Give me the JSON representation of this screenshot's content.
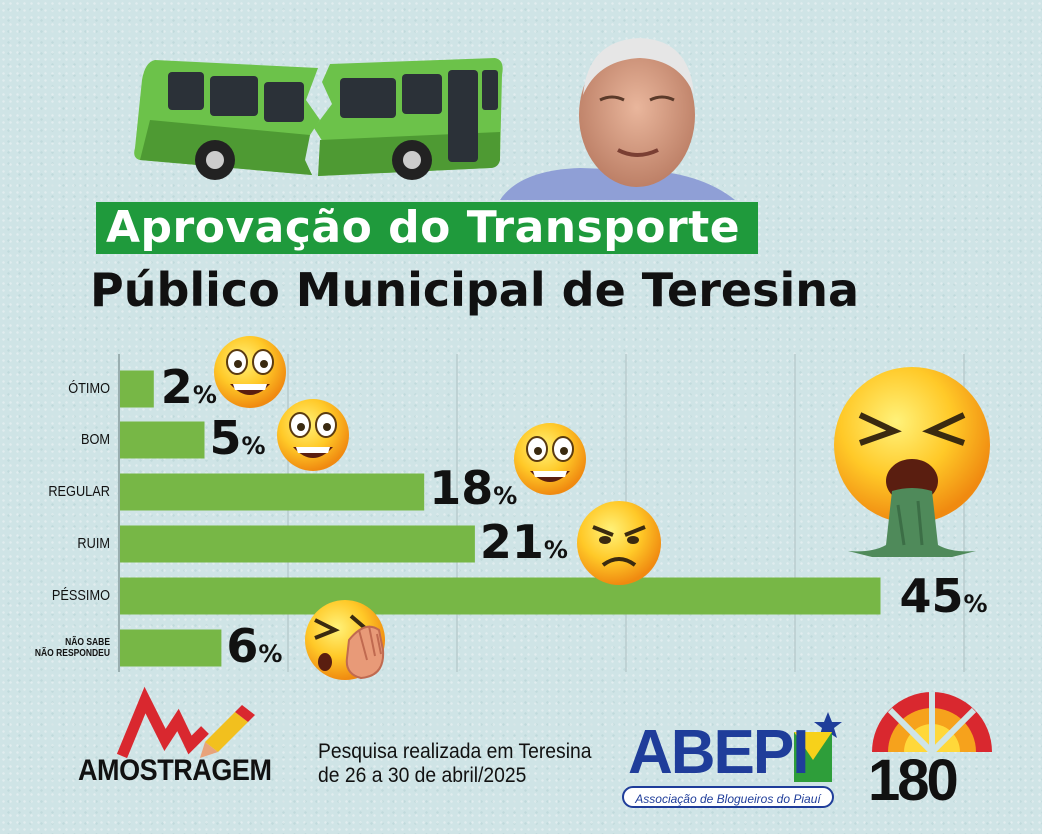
{
  "title_line1": "Aprovação do Transporte",
  "title_line2": "Público Municipal de Teresina",
  "chart_data": {
    "type": "bar",
    "orientation": "horizontal",
    "categories": [
      "ÓTIMO",
      "BOM",
      "REGULAR",
      "RUIM",
      "PÉSSIMO",
      "NÃO SABE NÃO RESPONDEU"
    ],
    "category_lines": [
      [
        "ÓTIMO"
      ],
      [
        "BOM"
      ],
      [
        "REGULAR"
      ],
      [
        "RUIM"
      ],
      [
        "PÉSSIMO"
      ],
      [
        "NÃO SABE",
        "NÃO RESPONDEU"
      ]
    ],
    "values": [
      2,
      5,
      18,
      21,
      45,
      6
    ],
    "value_labels": [
      "2",
      "5",
      "18",
      "21",
      "45",
      "6"
    ],
    "value_suffix": "%",
    "xlim": [
      0,
      50
    ],
    "grid": true,
    "bar_color": "#77b746"
  },
  "footer": {
    "survey_line1": "Pesquisa realizada em Teresina",
    "survey_line2": "de 26 a 30 de abril/2025",
    "logo_amostragem": "AMOSTRAGEM",
    "logo_abepi": "ABEPI",
    "logo_abepi_sub": "Associação de Blogueiros do Piauí",
    "logo_180": "180"
  },
  "icons": [
    "bus-broken-icon",
    "man-photo",
    "smile-emoji-icon",
    "grin-emoji-icon",
    "angry-emoji-icon",
    "vomit-emoji-icon",
    "facepalm-emoji-icon"
  ],
  "colors": {
    "title_bg": "#1f9a3c",
    "bus": "#6cc24a",
    "abepi_blue": "#1f3d9a",
    "accent_red": "#d9282f"
  }
}
